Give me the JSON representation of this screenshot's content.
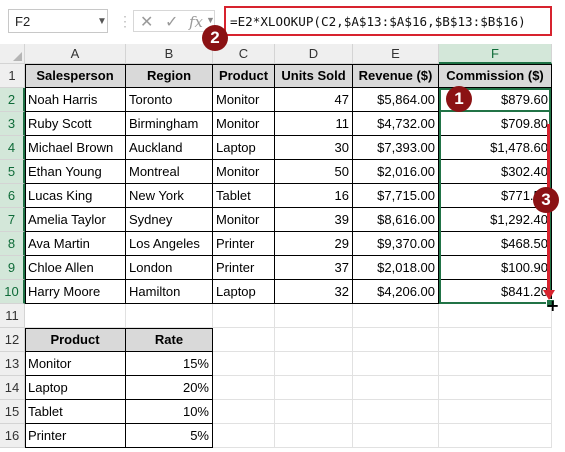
{
  "name_box": {
    "value": "F2"
  },
  "formula_bar": {
    "cancel_glyph": "✕",
    "enter_glyph": "✓",
    "fx_glyph": "fx",
    "formula": "=E2*XLOOKUP(C2,$A$13:$A$16,$B$13:$B$16)"
  },
  "columns": [
    "A",
    "B",
    "C",
    "D",
    "E",
    "F"
  ],
  "rows": [
    "1",
    "2",
    "3",
    "4",
    "5",
    "6",
    "7",
    "8",
    "9",
    "10",
    "11",
    "12",
    "13",
    "14",
    "15",
    "16"
  ],
  "table1": {
    "headers": [
      "Salesperson",
      "Region",
      "Product",
      "Units Sold",
      "Revenue ($)",
      "Commission ($)"
    ],
    "rows": [
      [
        "Noah Harris",
        "Toronto",
        "Monitor",
        "47",
        "$5,864.00",
        "$879.60"
      ],
      [
        "Ruby Scott",
        "Birmingham",
        "Monitor",
        "11",
        "$4,732.00",
        "$709.80"
      ],
      [
        "Michael Brown",
        "Auckland",
        "Laptop",
        "30",
        "$7,393.00",
        "$1,478.60"
      ],
      [
        "Ethan Young",
        "Montreal",
        "Monitor",
        "50",
        "$2,016.00",
        "$302.40"
      ],
      [
        "Lucas King",
        "New York",
        "Tablet",
        "16",
        "$7,715.00",
        "$771.50"
      ],
      [
        "Amelia Taylor",
        "Sydney",
        "Monitor",
        "39",
        "$8,616.00",
        "$1,292.40"
      ],
      [
        "Ava Martin",
        "Los Angeles",
        "Printer",
        "29",
        "$9,370.00",
        "$468.50"
      ],
      [
        "Chloe Allen",
        "London",
        "Printer",
        "37",
        "$2,018.00",
        "$100.90"
      ],
      [
        "Harry Moore",
        "Hamilton",
        "Laptop",
        "32",
        "$4,206.00",
        "$841.20"
      ]
    ]
  },
  "table2": {
    "headers": [
      "Product",
      "Rate"
    ],
    "rows": [
      [
        "Monitor",
        "15%"
      ],
      [
        "Laptop",
        "20%"
      ],
      [
        "Tablet",
        "10%"
      ],
      [
        "Printer",
        "5%"
      ]
    ]
  },
  "annotations": {
    "badge_1": "1",
    "badge_2": "2",
    "badge_3": "3"
  },
  "colors": {
    "selection": "#217346",
    "annotation_red": "#d7232e",
    "badge": "#8b1214"
  }
}
